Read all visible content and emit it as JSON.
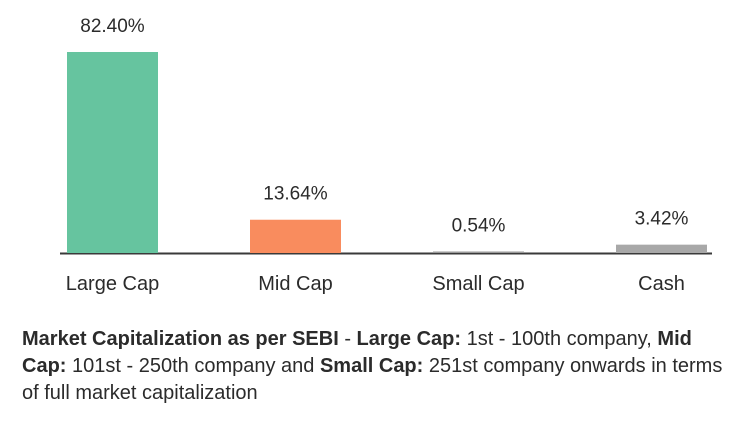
{
  "chart_data": {
    "type": "bar",
    "categories": [
      "Large Cap",
      "Mid Cap",
      "Small Cap",
      "Cash"
    ],
    "values": [
      82.4,
      13.64,
      0.54,
      3.42
    ],
    "labels": [
      "82.40%",
      "13.64%",
      "0.54%",
      "3.42%"
    ],
    "colors": [
      "#66c49f",
      "#f98c5e",
      "#9a9a9a",
      "#a8a8a8"
    ],
    "ylim": [
      0,
      82.4
    ],
    "grid": false,
    "title": "",
    "xlabel": "",
    "ylabel": ""
  },
  "caption": {
    "b1": "Market Capitalization as per SEBI",
    "t1": " - ",
    "b2": "Large Cap:",
    "t2": " 1st - 100th company, ",
    "b3": "Mid Cap:",
    "t3": " 101st - 250th company and ",
    "b4": "Small Cap:",
    "t4": " 251st company onwards in terms of full market capitalization"
  },
  "colors": {
    "axis": "#3a3a3a",
    "text": "#2b2b2b"
  }
}
